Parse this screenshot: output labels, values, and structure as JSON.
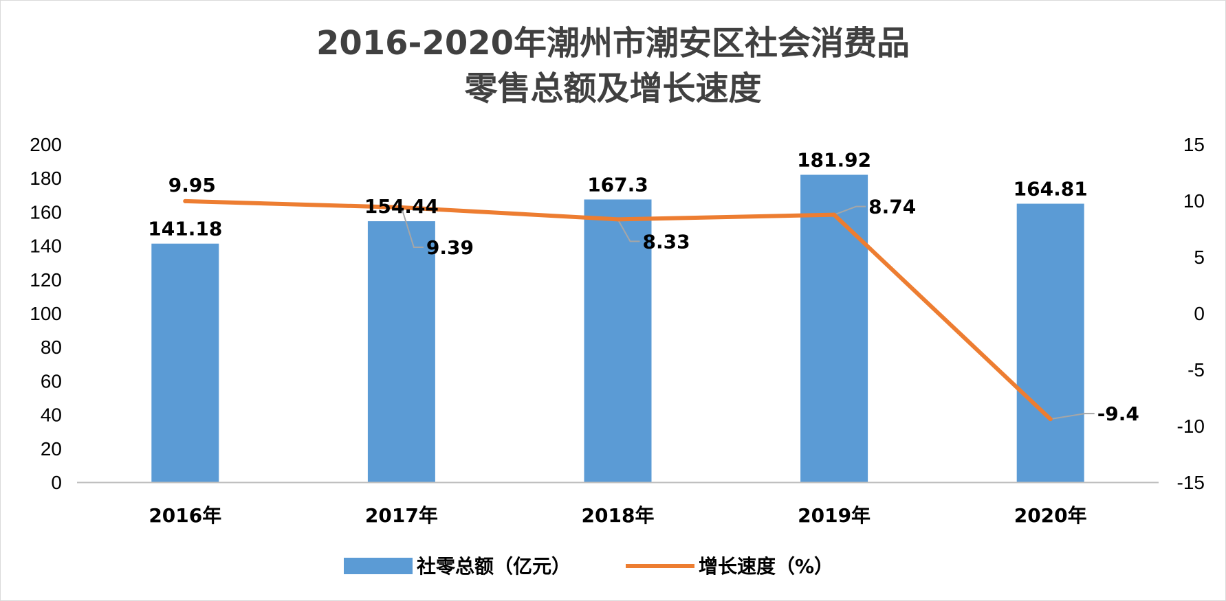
{
  "chart_data": {
    "type": "bar+line",
    "title": [
      "2016-2020年潮州市潮安区社会消费品",
      "零售总额及增长速度"
    ],
    "categories": [
      "2016年",
      "2017年",
      "2018年",
      "2019年",
      "2020年"
    ],
    "series": [
      {
        "name": "社零总额（亿元）",
        "type": "bar",
        "axis": "left",
        "color": "#5B9BD5",
        "values": [
          141.18,
          154.44,
          167.3,
          181.92,
          164.81
        ]
      },
      {
        "name": "增长速度（%）",
        "type": "line",
        "axis": "right",
        "color": "#ED7D31",
        "values": [
          9.95,
          9.39,
          8.33,
          8.74,
          -9.4
        ]
      }
    ],
    "y_left": {
      "min": 0,
      "max": 200,
      "step": 20
    },
    "y_right": {
      "min": -15,
      "max": 15,
      "step": 5
    },
    "grid": false,
    "legend": "bottom"
  }
}
